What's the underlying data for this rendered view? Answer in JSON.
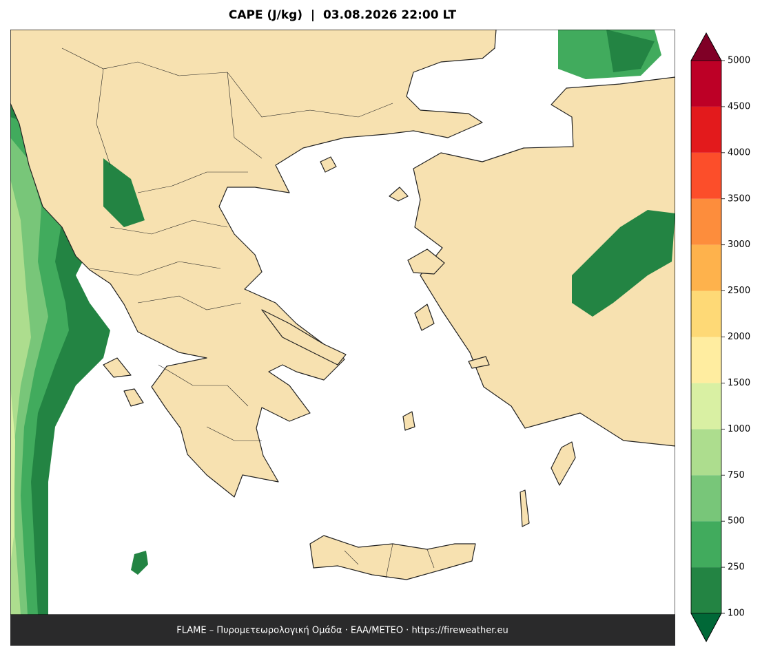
{
  "chart_data": {
    "type": "map",
    "title": "CAPE (J/kg)  |  03.08.2026 22:00 LT",
    "colorbar": {
      "boundaries": [
        100,
        250,
        500,
        750,
        1000,
        1500,
        2000,
        2500,
        3000,
        3500,
        4000,
        4500,
        5000
      ],
      "colors": [
        "#238443",
        "#41ab5d",
        "#78c679",
        "#addd8e",
        "#d9f0a3",
        "#ffeda0",
        "#fed976",
        "#feb24c",
        "#fd8d3c",
        "#fc4e2a",
        "#e31a1c",
        "#bd0026"
      ],
      "under_color": "#006837",
      "over_color": "#800026"
    },
    "footer": "FLAME – Πυρομετεωρολογική Ομάδα · ΕΑΑ/METEO · https://fireweather.eu"
  }
}
